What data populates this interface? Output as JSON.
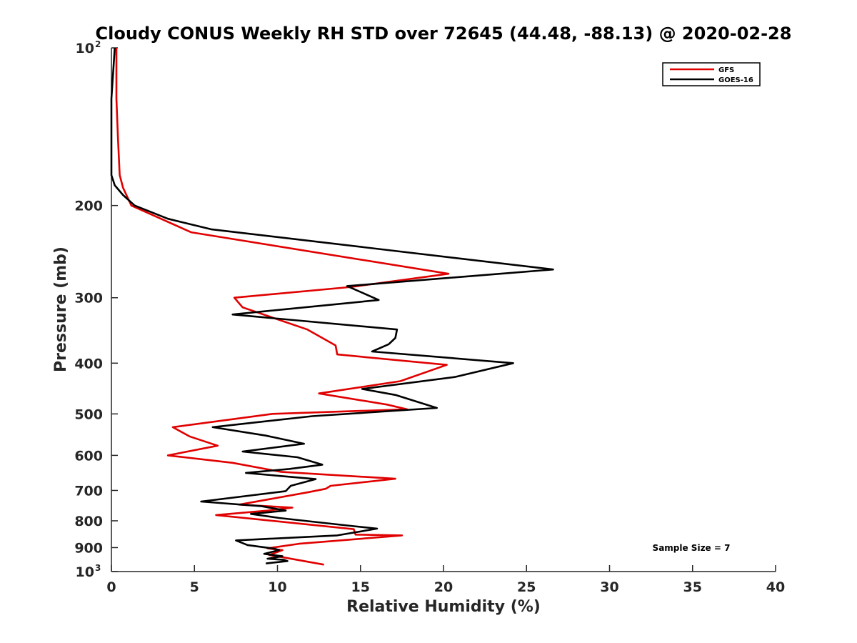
{
  "chart_data": {
    "type": "line",
    "title": "Cloudy CONUS Weekly RH STD over 72645 (44.48, -88.13) @ 2020-02-28",
    "xlabel": "Relative Humidity (%)",
    "ylabel": "Pressure (mb)",
    "xlim": [
      0,
      40
    ],
    "ylim": [
      100,
      1000
    ],
    "y_scale": "log",
    "y_reversed": true,
    "grid": false,
    "legend_position": "top-right",
    "x_ticks": [
      "0",
      "5",
      "10",
      "15",
      "20",
      "25",
      "30",
      "35",
      "40"
    ],
    "y_ticks": [
      {
        "value": 100,
        "base": "10",
        "exp": "2"
      },
      {
        "value": 200,
        "label": "200"
      },
      {
        "value": 300,
        "label": "300"
      },
      {
        "value": 400,
        "label": "400"
      },
      {
        "value": 500,
        "label": "500"
      },
      {
        "value": 600,
        "label": "600"
      },
      {
        "value": 700,
        "label": "700"
      },
      {
        "value": 800,
        "label": "800"
      },
      {
        "value": 900,
        "label": "900"
      },
      {
        "value": 1000,
        "base": "10",
        "exp": "3"
      }
    ],
    "annotation": "Sample Size = 7",
    "series": [
      {
        "name": "GFS",
        "color": "#e00000",
        "points": [
          [
            0.3,
            100
          ],
          [
            0.3,
            125
          ],
          [
            0.4,
            150
          ],
          [
            0.5,
            175
          ],
          [
            0.7,
            185
          ],
          [
            1.2,
            200
          ],
          [
            4.8,
            225
          ],
          [
            20.3,
            270
          ],
          [
            14.5,
            286
          ],
          [
            7.4,
            300
          ],
          [
            7.9,
            313
          ],
          [
            11.8,
            345
          ],
          [
            13.5,
            370
          ],
          [
            13.6,
            385
          ],
          [
            20.2,
            403
          ],
          [
            17.4,
            433
          ],
          [
            12.5,
            457
          ],
          [
            16.6,
            480
          ],
          [
            17.8,
            490
          ],
          [
            9.7,
            500
          ],
          [
            3.7,
            530
          ],
          [
            4.7,
            552
          ],
          [
            6.4,
            575
          ],
          [
            3.4,
            600
          ],
          [
            7.3,
            620
          ],
          [
            10.2,
            645
          ],
          [
            17.1,
            665
          ],
          [
            13.2,
            686
          ],
          [
            12.9,
            695
          ],
          [
            11.8,
            706
          ],
          [
            7.7,
            745
          ],
          [
            10.9,
            755
          ],
          [
            9.4,
            765
          ],
          [
            6.3,
            780
          ],
          [
            14.6,
            830
          ],
          [
            14.7,
            850
          ],
          [
            17.5,
            853
          ],
          [
            11.3,
            885
          ],
          [
            9.4,
            903
          ],
          [
            10.3,
            910
          ],
          [
            9.5,
            930
          ],
          [
            10.4,
            940
          ],
          [
            12.8,
            970
          ]
        ]
      },
      {
        "name": "GOES-16",
        "color": "#000000",
        "points": [
          [
            0.2,
            100
          ],
          [
            0,
            125
          ],
          [
            0,
            150
          ],
          [
            0,
            175
          ],
          [
            0.2,
            183
          ],
          [
            0.7,
            191
          ],
          [
            1.4,
            200
          ],
          [
            3.4,
            212
          ],
          [
            6,
            222
          ],
          [
            26.6,
            265
          ],
          [
            14.2,
            285
          ],
          [
            16.1,
            303
          ],
          [
            7.3,
            323
          ],
          [
            17.2,
            345
          ],
          [
            17.1,
            358
          ],
          [
            16.7,
            368
          ],
          [
            15.7,
            380
          ],
          [
            24.2,
            400
          ],
          [
            20.7,
            425
          ],
          [
            15.1,
            448
          ],
          [
            17.1,
            460
          ],
          [
            19.6,
            487
          ],
          [
            12.1,
            505
          ],
          [
            6.1,
            530
          ],
          [
            9.3,
            550
          ],
          [
            11.6,
            570
          ],
          [
            7.9,
            590
          ],
          [
            11.2,
            605
          ],
          [
            12.7,
            625
          ],
          [
            10.7,
            637
          ],
          [
            8.1,
            648
          ],
          [
            12.3,
            666
          ],
          [
            10.8,
            686
          ],
          [
            10.5,
            702
          ],
          [
            5.4,
            735
          ],
          [
            9,
            750
          ],
          [
            10.5,
            765
          ],
          [
            8.4,
            776
          ],
          [
            10.1,
            790
          ],
          [
            14.4,
            818
          ],
          [
            16,
            828
          ],
          [
            13.6,
            853
          ],
          [
            7.5,
            872
          ],
          [
            8.2,
            890
          ],
          [
            9.8,
            904
          ],
          [
            10.1,
            910
          ],
          [
            9.2,
            925
          ],
          [
            10.3,
            935
          ],
          [
            9.4,
            945
          ],
          [
            10.4,
            950
          ],
          [
            10.6,
            955
          ],
          [
            9.3,
            965
          ]
        ]
      }
    ]
  }
}
